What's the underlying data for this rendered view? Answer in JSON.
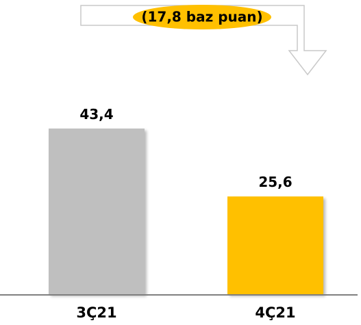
{
  "chart_data": {
    "type": "bar",
    "categories": [
      "3Ç21",
      "4Ç21"
    ],
    "values": [
      43.4,
      25.6
    ],
    "value_labels": [
      "43,4",
      "25,6"
    ],
    "bar_colors": [
      "#bfbfbf",
      "#ffc000"
    ],
    "ylim": [
      0,
      50
    ],
    "grid": false,
    "legend": "none",
    "title": "",
    "xlabel": "",
    "ylabel": "",
    "annotation": {
      "text": "(17,8 baz puan)",
      "shape": "down-arrow-callout",
      "fill_color": "#ffc000",
      "border_color": "#c9c9c9",
      "text_color": "#000000"
    },
    "axis_color": "#7f7f7f"
  }
}
